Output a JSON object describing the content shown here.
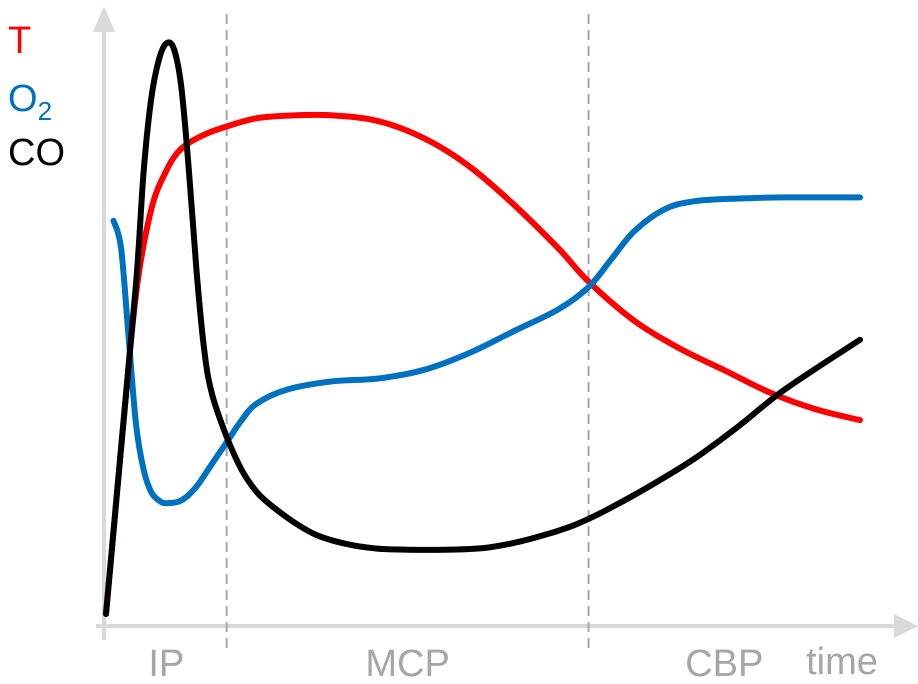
{
  "chart_data": {
    "type": "line",
    "title": "",
    "xlabel": "time",
    "ylabel": "",
    "xlim": [
      0,
      100
    ],
    "ylim": [
      0,
      100
    ],
    "grid": false,
    "legend": {
      "placement": "top-left",
      "items": [
        {
          "text": "T",
          "color": "#ff0000"
        },
        {
          "text": "O",
          "subscript": "2",
          "color": "#0070c0"
        },
        {
          "text": "CO",
          "color": "#000000"
        }
      ]
    },
    "phases": [
      {
        "label": "IP",
        "start": 0,
        "end": 16
      },
      {
        "label": "MCP",
        "start": 16,
        "end": 64
      },
      {
        "label": "CBP",
        "start": 64,
        "end": 100
      }
    ],
    "series": [
      {
        "name": "T",
        "color": "#ff0000",
        "x": [
          0,
          2,
          4,
          6,
          8,
          10,
          13,
          16,
          20,
          25,
          30,
          36,
          42,
          48,
          54,
          60,
          64,
          70,
          76,
          82,
          88,
          94,
          100
        ],
        "y": [
          0,
          30,
          58,
          73,
          80,
          84,
          86.5,
          88,
          89.5,
          90,
          90,
          89,
          86,
          81,
          74,
          66,
          60,
          53,
          48,
          44,
          40,
          37,
          35
        ]
      },
      {
        "name": "O2",
        "color": "#0070c0",
        "x": [
          1,
          2,
          3,
          4,
          5,
          6,
          7,
          8,
          10,
          12,
          14,
          16,
          18,
          20,
          24,
          30,
          36,
          42,
          48,
          54,
          60,
          64,
          67,
          70,
          74,
          78,
          84,
          90,
          100
        ],
        "y": [
          71,
          66,
          50,
          34,
          26,
          22,
          20.5,
          20,
          20.5,
          23,
          27,
          31,
          35,
          38,
          40.5,
          42,
          42.5,
          44,
          47,
          51,
          55,
          59,
          64,
          69,
          73,
          74.5,
          75,
          75.2,
          75.2
        ]
      },
      {
        "name": "CO",
        "color": "#000000",
        "x": [
          0,
          2,
          4,
          5,
          6,
          7,
          8,
          9,
          10,
          11,
          12,
          13,
          14,
          16,
          18,
          20,
          22,
          25,
          28,
          32,
          36,
          40,
          45,
          50,
          54,
          58,
          62,
          66,
          72,
          78,
          84,
          90,
          100
        ],
        "y": [
          0,
          30,
          60,
          80,
          93,
          100,
          103,
          102,
          95,
          80,
          62,
          48,
          40,
          32,
          26,
          22,
          19.5,
          16.5,
          14.2,
          12.6,
          11.8,
          11.6,
          11.6,
          11.9,
          12.8,
          14.2,
          16,
          18.5,
          23,
          28,
          34,
          40.5,
          49.5
        ]
      }
    ]
  }
}
